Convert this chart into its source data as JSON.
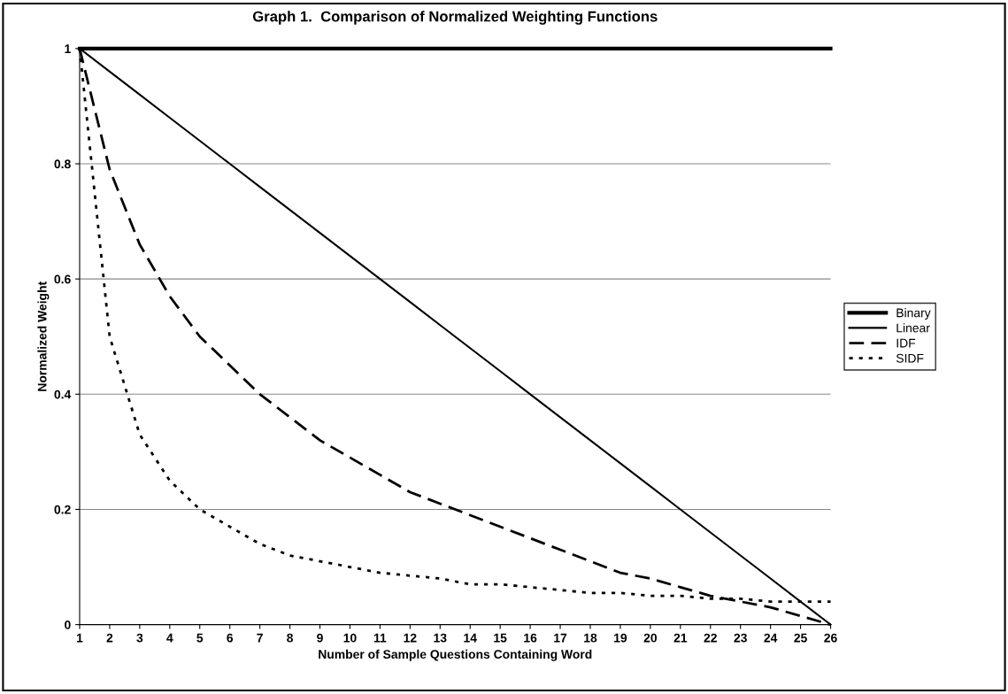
{
  "chart_data": {
    "type": "line",
    "title": "Graph 1.  Comparison of Normalized Weighting Functions",
    "xlabel": "Number of Sample Questions Containing Word",
    "ylabel": "Normalized Weight",
    "x": [
      1,
      2,
      3,
      4,
      5,
      6,
      7,
      8,
      9,
      10,
      11,
      12,
      13,
      14,
      15,
      16,
      17,
      18,
      19,
      20,
      21,
      22,
      23,
      24,
      25,
      26
    ],
    "series": [
      {
        "name": "Binary",
        "color": "#000000",
        "line_style": "solid",
        "values": [
          1,
          1,
          1,
          1,
          1,
          1,
          1,
          1,
          1,
          1,
          1,
          1,
          1,
          1,
          1,
          1,
          1,
          1,
          1,
          1,
          1,
          1,
          1,
          1,
          1,
          1
        ]
      },
      {
        "name": "Linear",
        "color": "#000000",
        "line_style": "solid",
        "values": [
          1,
          0.96,
          0.92,
          0.88,
          0.84,
          0.8,
          0.76,
          0.72,
          0.68,
          0.64,
          0.6,
          0.56,
          0.52,
          0.48,
          0.44,
          0.4,
          0.36,
          0.32,
          0.28,
          0.24,
          0.2,
          0.16,
          0.12,
          0.08,
          0.04,
          0
        ]
      },
      {
        "name": "IDF",
        "color": "#000000",
        "line_style": "dashed",
        "values": [
          1,
          0.79,
          0.66,
          0.57,
          0.5,
          0.45,
          0.4,
          0.36,
          0.32,
          0.29,
          0.26,
          0.23,
          0.21,
          0.19,
          0.17,
          0.15,
          0.13,
          0.11,
          0.09,
          0.08,
          0.065,
          0.05,
          0.04,
          0.03,
          0.015,
          0
        ]
      },
      {
        "name": "SIDF",
        "color": "#000000",
        "line_style": "dotted",
        "values": [
          1,
          0.5,
          0.33,
          0.25,
          0.2,
          0.17,
          0.14,
          0.12,
          0.11,
          0.1,
          0.09,
          0.085,
          0.08,
          0.07,
          0.07,
          0.065,
          0.06,
          0.055,
          0.055,
          0.05,
          0.05,
          0.045,
          0.045,
          0.04,
          0.04,
          0.04
        ]
      }
    ],
    "xlim": [
      1,
      26
    ],
    "xticks": [
      1,
      2,
      3,
      4,
      5,
      6,
      7,
      8,
      9,
      10,
      11,
      12,
      13,
      14,
      15,
      16,
      17,
      18,
      19,
      20,
      21,
      22,
      23,
      24,
      25,
      26
    ],
    "ylim": [
      0,
      1
    ],
    "yticks": [
      0,
      0.2,
      0.4,
      0.6,
      0.8,
      1
    ],
    "grid": "y",
    "legend": "right",
    "marker": "none"
  }
}
